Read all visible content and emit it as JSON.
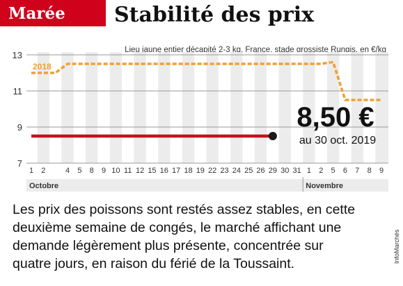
{
  "chart_data": {
    "type": "line",
    "kicker": "Marée",
    "title": "Stabilité des prix",
    "subtitle": "Lieu jaune entier décapité 2-3 kg, France, stade grossiste Rungis, en €/kg",
    "categories": [
      "1",
      "2",
      null,
      "4",
      "5",
      "8",
      "9",
      "10",
      "11",
      "12",
      "15",
      "16",
      "17",
      "18",
      "19",
      "22",
      "23",
      "24",
      "25",
      "26",
      "29",
      "30",
      "31",
      "1",
      "2",
      "5",
      "6",
      "7",
      "8",
      "9"
    ],
    "x_groups": [
      "Octobre",
      "Novembre"
    ],
    "ylim": [
      7,
      13
    ],
    "yticks": [
      7,
      9,
      11,
      13
    ],
    "grid": true,
    "series": [
      {
        "name": "2018",
        "color": "#f0a030",
        "dashed": true,
        "values": [
          12,
          12,
          12,
          12.5,
          12.5,
          12.5,
          12.5,
          12.5,
          12.5,
          12.5,
          12.5,
          12.5,
          12.5,
          12.5,
          12.5,
          12.5,
          12.5,
          12.5,
          12.5,
          12.5,
          12.5,
          12.5,
          12.5,
          12.5,
          12.5,
          12.6,
          10.5,
          10.5,
          10.5,
          10.5
        ]
      },
      {
        "color": "#c0141c",
        "dashed": false,
        "values": [
          8.5,
          8.5,
          8.5,
          8.5,
          8.5,
          8.5,
          8.5,
          8.5,
          8.5,
          8.5,
          8.5,
          8.5,
          8.5,
          8.5,
          8.5,
          8.5,
          8.5,
          8.5,
          8.5,
          8.5,
          8.5,
          null,
          null,
          null,
          null,
          null,
          null,
          null,
          null,
          null
        ]
      }
    ],
    "annotation": {
      "value_label": "8,50 €",
      "text": "au 30 oct. 2019"
    },
    "caption_lines": [
      "Les prix des poissons sont restés assez stables, en cette",
      "deuxième semaine de congés, le marché affichant une",
      "demande légèrement plus présente, concentrée sur",
      "quatre jours, en raison du férié de la Toussaint."
    ],
    "credit": "InfoMarchés"
  }
}
